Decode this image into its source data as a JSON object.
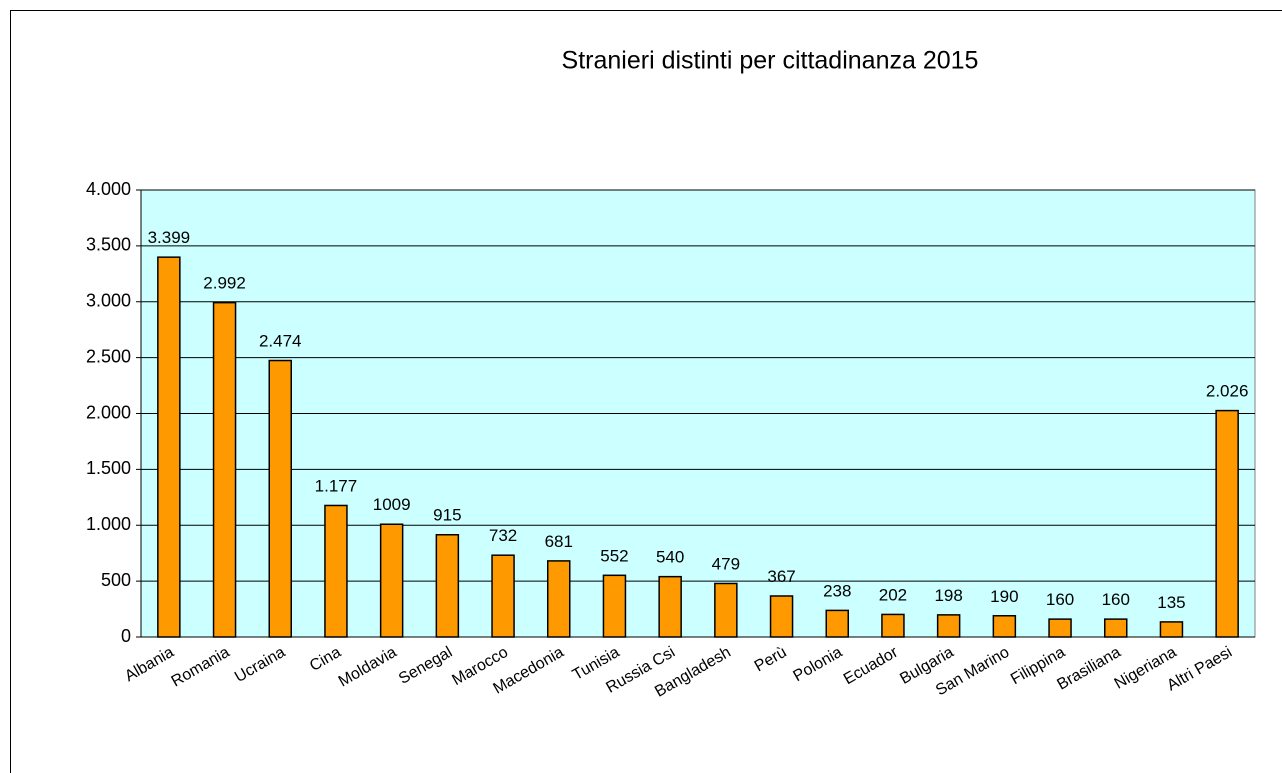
{
  "chart_data": {
    "type": "bar",
    "title": "Stranieri distinti per cittadinanza 2015",
    "categories": [
      "Albania",
      "Romania",
      "Ucraina",
      "Cina",
      "Moldavia",
      "Senegal",
      "Marocco",
      "Macedonia",
      "Tunisia",
      "Russia Csi",
      "Bangladesh",
      "Perù",
      "Polonia",
      "Ecuador",
      "Bulgaria",
      "San Marino",
      "Filippina",
      "Brasiliana",
      "Nigeriana",
      "Altri Paesi"
    ],
    "values": [
      3399,
      2992,
      2474,
      1177,
      1009,
      915,
      732,
      681,
      552,
      540,
      479,
      367,
      238,
      202,
      198,
      190,
      160,
      160,
      135,
      2026
    ],
    "value_labels": [
      "3.399",
      "2.992",
      "2.474",
      "1.177",
      "1009",
      "915",
      "732",
      "681",
      "552",
      "540",
      "479",
      "367",
      "238",
      "202",
      "198",
      "190",
      "160",
      "160",
      "135",
      "2.026"
    ],
    "color": "#ff9900",
    "ylim": [
      0,
      4000
    ],
    "yticks": [
      0,
      500,
      {
        "value": 1000,
        "label": "1.000"
      },
      {
        "value": 1500,
        "label": "1.500"
      },
      {
        "value": 2000,
        "label": "2.000"
      },
      {
        "value": 2500,
        "label": "2.500"
      },
      {
        "value": 3000,
        "label": "3.000"
      },
      {
        "value": 3500,
        "label": "3.500"
      },
      {
        "value": 4000,
        "label": "4.000"
      }
    ],
    "grid": true
  }
}
